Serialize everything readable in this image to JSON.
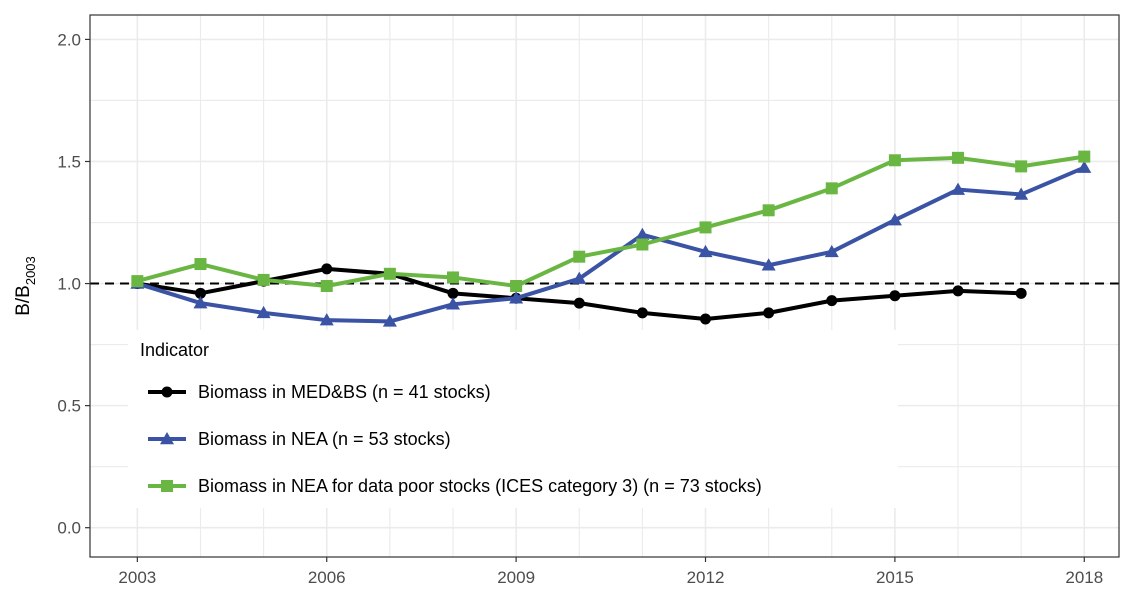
{
  "chart_data": {
    "type": "line",
    "ylabel_main": "B/B",
    "ylabel_sub": "2003",
    "xlim": [
      2002.25,
      2018.55
    ],
    "ylim": [
      -0.12,
      2.1
    ],
    "x_ticks": [
      2003,
      2006,
      2009,
      2012,
      2015,
      2018
    ],
    "y_ticks": [
      0.0,
      0.5,
      1.0,
      1.5,
      2.0
    ],
    "y_tick_labels": [
      "0.0",
      "0.5",
      "1.0",
      "1.5",
      "2.0"
    ],
    "reference_line": 1.0,
    "grid": true,
    "legend_title": "Indicator",
    "legend_position": "bottom-left",
    "series": [
      {
        "name": "Biomass in MED&BS (n = 41 stocks)",
        "color": "#000000",
        "marker": "circle",
        "x": [
          2003,
          2004,
          2005,
          2006,
          2007,
          2008,
          2009,
          2010,
          2011,
          2012,
          2013,
          2014,
          2015,
          2016,
          2017
        ],
        "y": [
          1.0,
          0.96,
          1.01,
          1.06,
          1.04,
          0.96,
          0.94,
          0.92,
          0.88,
          0.855,
          0.88,
          0.93,
          0.95,
          0.97,
          0.96
        ]
      },
      {
        "name": "Biomass in NEA (n = 53 stocks)",
        "color": "#3a53a4",
        "marker": "triangle",
        "x": [
          2003,
          2004,
          2005,
          2006,
          2007,
          2008,
          2009,
          2010,
          2011,
          2012,
          2013,
          2014,
          2015,
          2016,
          2017,
          2018
        ],
        "y": [
          1.0,
          0.92,
          0.88,
          0.85,
          0.845,
          0.915,
          0.94,
          1.02,
          1.2,
          1.13,
          1.075,
          1.13,
          1.26,
          1.385,
          1.365,
          1.475
        ]
      },
      {
        "name": "Biomass in NEA for data poor stocks (ICES category 3) (n = 73 stocks)",
        "color": "#6ab643",
        "marker": "square",
        "x": [
          2003,
          2004,
          2005,
          2006,
          2007,
          2008,
          2009,
          2010,
          2011,
          2012,
          2013,
          2014,
          2015,
          2016,
          2017,
          2018
        ],
        "y": [
          1.01,
          1.08,
          1.015,
          0.99,
          1.04,
          1.025,
          0.99,
          1.11,
          1.16,
          1.23,
          1.3,
          1.39,
          1.505,
          1.515,
          1.48,
          1.52
        ]
      }
    ]
  }
}
